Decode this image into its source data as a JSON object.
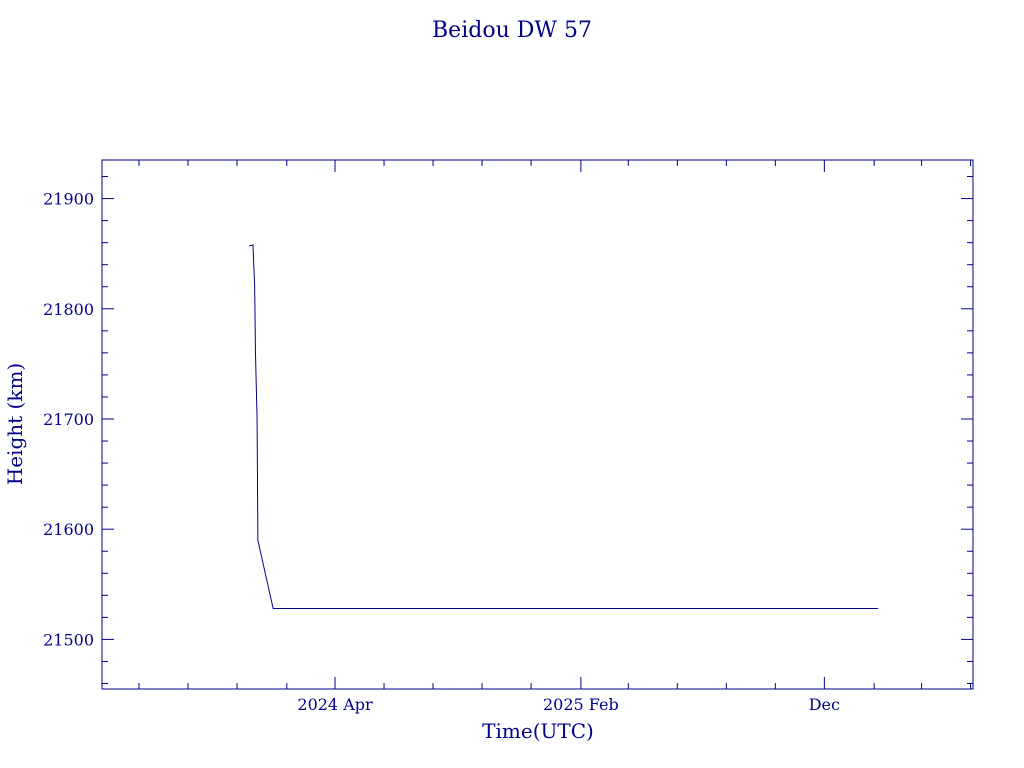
{
  "chart_data": {
    "type": "line",
    "title": "Beidou DW 57",
    "xlabel": "Time(UTC)",
    "ylabel": "Height (km)",
    "xlim": [
      "2023-06-16",
      "2026-06-04"
    ],
    "ylim": [
      21455,
      21935
    ],
    "yticks": [
      21500,
      21600,
      21700,
      21800,
      21900
    ],
    "xticks": [
      {
        "date": "2024-04-01",
        "label": "2024 Apr"
      },
      {
        "date": "2025-02-01",
        "label": "2025 Feb"
      },
      {
        "date": "2025-12-01",
        "label": "Dec"
      }
    ],
    "grid": false,
    "series": [
      {
        "x": [
          "2023-12-16",
          "2023-12-21",
          "2023-12-21",
          "2023-12-23",
          "2023-12-24",
          "2023-12-26",
          "2023-12-27",
          "2024-01-15",
          "2026-02-06"
        ],
        "y": [
          21857,
          21858,
          21855,
          21820,
          21760,
          21700,
          21590,
          21528,
          21528
        ]
      }
    ]
  }
}
